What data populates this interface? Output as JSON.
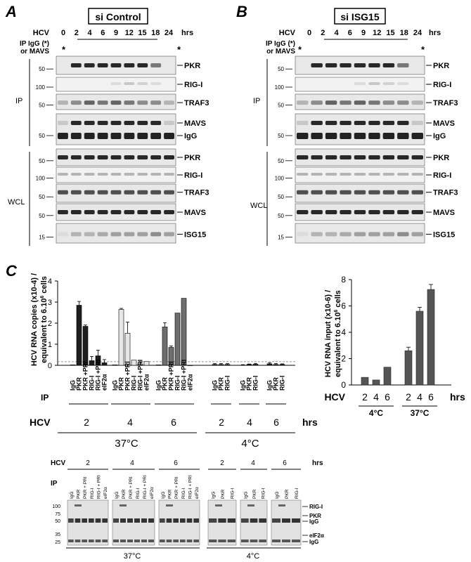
{
  "panel_a": {
    "letter": "A",
    "title": "si Control",
    "hcv_label": "HCV",
    "ip_label_1": "IP IgG (*)",
    "ip_label_2": "or MAVS",
    "timepoints": [
      "0",
      "2",
      "4",
      "6",
      "9",
      "12",
      "15",
      "18",
      "24"
    ],
    "unit": "hrs",
    "star": "*",
    "ip_group": "IP",
    "wcl_group": "WCL",
    "ip_bands": [
      "PKR",
      "RIG-I",
      "TRAF3",
      "MAVS",
      "IgG"
    ],
    "wcl_bands": [
      "PKR",
      "RIG-I",
      "TRAF3",
      "MAVS",
      "ISG15"
    ],
    "ip_markers": [
      "50",
      "100",
      "50",
      "50"
    ],
    "wcl_markers": [
      "50",
      "100",
      "50",
      "50",
      "15"
    ]
  },
  "panel_b": {
    "letter": "B",
    "title": "si ISG15",
    "hcv_label": "HCV",
    "ip_label_1": "IP IgG (*)",
    "ip_label_2": "or MAVS",
    "timepoints": [
      "0",
      "2",
      "4",
      "6",
      "9",
      "12",
      "15",
      "18",
      "24"
    ],
    "unit": "hrs",
    "star": "*",
    "ip_group": "IP",
    "wcl_group": "WCL",
    "ip_bands": [
      "PKR",
      "RIG-I",
      "TRAF3",
      "MAVS",
      "IgG"
    ],
    "wcl_bands": [
      "PKR",
      "RIG-I",
      "TRAF3",
      "MAVS",
      "ISG15"
    ],
    "ip_markers": [
      "50",
      "100",
      "50",
      "50"
    ],
    "wcl_markers": [
      "50",
      "100",
      "50",
      "50",
      "15"
    ]
  },
  "panel_c": {
    "letter": "C",
    "hcv_label": "HCV",
    "ip_label": "IP",
    "unit": "hrs",
    "temp_37": "37°C",
    "temp_4": "4°C",
    "hours": [
      "2",
      "4",
      "6",
      "2",
      "4",
      "6"
    ],
    "lane_labels_37": [
      "IgG",
      "PKR",
      "PKR +PRI",
      "RIG-I",
      "RIG-I +PRI",
      "eIF2α"
    ],
    "lane_labels_4": [
      "IgG",
      "PKR",
      "RIG-I"
    ],
    "blot_lanes_37": [
      "IgG",
      "PKR",
      "PKR + PRI",
      "RIG-I",
      "RIG-I + PRI",
      "eIF2α"
    ],
    "blot_markers": [
      "100",
      "75",
      "50",
      "35",
      "25"
    ],
    "blot_bands": [
      "RIG-I",
      "PKR",
      "IgG",
      "eIF2α",
      "IgG"
    ]
  },
  "chart_data": [
    {
      "type": "bar",
      "ylabel": "HCV RNA copies (x10-4) / equivalent to 6.10⁶ cells",
      "ylim": [
        0,
        4
      ],
      "yticks": [
        "0",
        "1",
        "2",
        "3",
        "4"
      ],
      "groups": [
        {
          "hcv": "2",
          "temp": "37°C",
          "categories": [
            "IgG",
            "PKR",
            "PKR +PRI",
            "RIG-I",
            "RIG-I +PRI",
            "eIF2α"
          ],
          "values": [
            0.02,
            2.85,
            1.85,
            0.22,
            0.45,
            0.12
          ],
          "errors": [
            0.0,
            0.18,
            0.06,
            0.2,
            0.27,
            0.15
          ],
          "color": "#1e1e1e"
        },
        {
          "hcv": "4",
          "temp": "37°C",
          "categories": [
            "IgG",
            "PKR",
            "PKR +PRI",
            "RIG-I",
            "RIG-I +PRI",
            "eIF2α"
          ],
          "values": [
            0.02,
            2.65,
            1.52,
            0.25,
            0.07,
            0.18
          ],
          "errors": [
            0.0,
            0.05,
            0.53,
            0.0,
            0.1,
            0.0
          ],
          "color": "#e6e6e6"
        },
        {
          "hcv": "6",
          "temp": "37°C",
          "categories": [
            "IgG",
            "PKR",
            "PKR +PRI",
            "RIG-I",
            "RIG-I +PRI",
            "eIF2α"
          ],
          "values": [
            0.02,
            1.82,
            0.85,
            2.48,
            3.18,
            0.0
          ],
          "errors": [
            0.0,
            0.2,
            0.07,
            0.0,
            0.0,
            0.0
          ],
          "color": "#6e6e6e"
        },
        {
          "hcv": "2",
          "temp": "4°C",
          "categories": [
            "IgG",
            "PKR",
            "RIG-I"
          ],
          "values": [
            0.04,
            0.04,
            0.04
          ],
          "errors": [
            0.04,
            0.04,
            0.04
          ],
          "color": "#1e1e1e"
        },
        {
          "hcv": "4",
          "temp": "4°C",
          "categories": [
            "IgG",
            "PKR",
            "RIG-I"
          ],
          "values": [
            0.01,
            0.04,
            0.05
          ],
          "errors": [
            0.02,
            0.02,
            0.04
          ],
          "color": "#1e1e1e"
        },
        {
          "hcv": "6",
          "temp": "4°C",
          "categories": [
            "IgG",
            "PKR",
            "RIG-I"
          ],
          "values": [
            0.07,
            0.04,
            0.04
          ],
          "errors": [
            0.05,
            0.04,
            0.03
          ],
          "color": "#1e1e1e"
        }
      ],
      "threshold": 0.17
    },
    {
      "type": "bar",
      "ylabel": "HCV RNA input (x10-6) / equivalent to 6.10⁶ cells",
      "ylim": [
        0,
        8
      ],
      "yticks": [
        "0",
        "2",
        "4",
        "6",
        "8"
      ],
      "xlabel": "HCV",
      "unit": "hrs",
      "groups": [
        {
          "temp": "4°C",
          "categories": [
            "2",
            "4",
            "6"
          ],
          "values": [
            0.58,
            0.38,
            1.35
          ],
          "errors": [
            0.0,
            0.0,
            0.0
          ],
          "color": "#555555"
        },
        {
          "temp": "37°C",
          "categories": [
            "2",
            "4",
            "6"
          ],
          "values": [
            2.6,
            5.6,
            7.25
          ],
          "errors": [
            0.27,
            0.3,
            0.38
          ],
          "color": "#555555"
        }
      ]
    }
  ]
}
